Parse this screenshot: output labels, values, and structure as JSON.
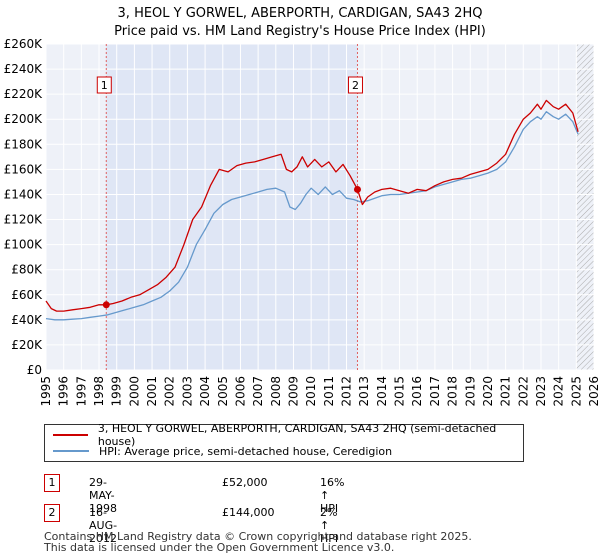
{
  "header": {
    "title_line1": "3, HEOL Y GORWEL, ABERPORTH, CARDIGAN, SA43 2HQ",
    "title_line2": "Price paid vs. HM Land Registry's House Price Index (HPI)"
  },
  "chart_data": {
    "type": "line",
    "title": "3, HEOL Y GORWEL, ABERPORTH, CARDIGAN, SA43 2HQ",
    "subtitle": "Price paid vs. HM Land Registry's House Price Index (HPI)",
    "xlim": [
      1995,
      2026
    ],
    "ylim": [
      0,
      260000
    ],
    "x_ticks": [
      1995,
      1996,
      1997,
      1998,
      1999,
      2000,
      2001,
      2002,
      2003,
      2004,
      2005,
      2006,
      2007,
      2008,
      2009,
      2010,
      2011,
      2012,
      2013,
      2014,
      2015,
      2016,
      2017,
      2018,
      2019,
      2020,
      2021,
      2022,
      2023,
      2024,
      2025,
      2026
    ],
    "y_ticks": [
      0,
      20000,
      40000,
      60000,
      80000,
      100000,
      120000,
      140000,
      160000,
      180000,
      200000,
      220000,
      240000,
      260000
    ],
    "y_tick_labels": [
      "£0",
      "£20K",
      "£40K",
      "£60K",
      "£80K",
      "£100K",
      "£120K",
      "£140K",
      "£160K",
      "£180K",
      "£200K",
      "£220K",
      "£240K",
      "£260K"
    ],
    "grid": true,
    "future_hatch_from": 2025.0,
    "series": [
      {
        "name": "3, HEOL Y GORWEL, ABERPORTH, CARDIGAN, SA43 2HQ (semi-detached house)",
        "color": "#cc0000",
        "x": [
          1995.0,
          1995.3,
          1995.6,
          1996.0,
          1996.5,
          1997.0,
          1997.5,
          1998.0,
          1998.41,
          1998.8,
          1999.3,
          1999.8,
          2000.3,
          2000.8,
          2001.3,
          2001.8,
          2002.3,
          2002.8,
          2003.3,
          2003.8,
          2004.3,
          2004.8,
          2005.3,
          2005.8,
          2006.3,
          2006.8,
          2007.3,
          2007.8,
          2008.3,
          2008.6,
          2008.9,
          2009.2,
          2009.5,
          2009.8,
          2010.2,
          2010.6,
          2011.0,
          2011.4,
          2011.8,
          2012.2,
          2012.62,
          2012.9,
          2013.2,
          2013.6,
          2014.0,
          2014.5,
          2015.0,
          2015.5,
          2016.0,
          2016.5,
          2017.0,
          2017.5,
          2018.0,
          2018.5,
          2019.0,
          2019.5,
          2020.0,
          2020.5,
          2021.0,
          2021.5,
          2022.0,
          2022.4,
          2022.8,
          2023.0,
          2023.3,
          2023.7,
          2024.0,
          2024.4,
          2024.8,
          2025.1
        ],
        "y": [
          55000,
          49000,
          47000,
          47000,
          48000,
          49000,
          50000,
          52000,
          52000,
          53000,
          55000,
          58000,
          60000,
          64000,
          68000,
          74000,
          82000,
          100000,
          120000,
          130000,
          147000,
          160000,
          158000,
          163000,
          165000,
          166000,
          168000,
          170000,
          172000,
          160000,
          158000,
          162000,
          170000,
          162000,
          168000,
          162000,
          166000,
          158000,
          164000,
          155000,
          144000,
          132000,
          138000,
          142000,
          144000,
          145000,
          143000,
          141000,
          144000,
          143000,
          147000,
          150000,
          152000,
          153000,
          156000,
          158000,
          160000,
          165000,
          172000,
          188000,
          200000,
          205000,
          212000,
          208000,
          215000,
          210000,
          208000,
          212000,
          205000,
          190000
        ]
      },
      {
        "name": "HPI: Average price, semi-detached house, Ceredigion",
        "color": "#6699cc",
        "x": [
          1995.0,
          1995.5,
          1996.0,
          1996.5,
          1997.0,
          1997.5,
          1998.0,
          1998.5,
          1999.0,
          1999.5,
          2000.0,
          2000.5,
          2001.0,
          2001.5,
          2002.0,
          2002.5,
          2003.0,
          2003.5,
          2004.0,
          2004.5,
          2005.0,
          2005.5,
          2006.0,
          2006.5,
          2007.0,
          2007.5,
          2008.0,
          2008.5,
          2008.8,
          2009.1,
          2009.4,
          2009.7,
          2010.0,
          2010.4,
          2010.8,
          2011.2,
          2011.6,
          2012.0,
          2012.4,
          2012.8,
          2013.2,
          2013.6,
          2014.0,
          2014.5,
          2015.0,
          2015.5,
          2016.0,
          2016.5,
          2017.0,
          2017.5,
          2018.0,
          2018.5,
          2019.0,
          2019.5,
          2020.0,
          2020.5,
          2021.0,
          2021.5,
          2022.0,
          2022.4,
          2022.8,
          2023.0,
          2023.3,
          2023.7,
          2024.0,
          2024.4,
          2024.8,
          2025.1
        ],
        "y": [
          41000,
          40000,
          40000,
          40500,
          41000,
          42000,
          43000,
          44000,
          46000,
          48000,
          50000,
          52000,
          55000,
          58000,
          63000,
          70000,
          82000,
          100000,
          112000,
          125000,
          132000,
          136000,
          138000,
          140000,
          142000,
          144000,
          145000,
          142000,
          130000,
          128000,
          133000,
          140000,
          145000,
          140000,
          146000,
          140000,
          143000,
          137000,
          136000,
          134000,
          135000,
          137000,
          139000,
          140000,
          140000,
          141000,
          142000,
          143000,
          146000,
          148000,
          150000,
          152000,
          153000,
          155000,
          157000,
          160000,
          166000,
          178000,
          192000,
          198000,
          202000,
          200000,
          206000,
          202000,
          200000,
          204000,
          198000,
          188000
        ]
      }
    ],
    "markers": [
      {
        "label": "1",
        "x": 1998.41,
        "y": 52000
      },
      {
        "label": "2",
        "x": 2012.62,
        "y": 144000
      }
    ]
  },
  "legend": {
    "property_label": "3, HEOL Y GORWEL, ABERPORTH, CARDIGAN, SA43 2HQ (semi-detached house)",
    "hpi_label": "HPI: Average price, semi-detached house, Ceredigion"
  },
  "transactions": [
    {
      "num": "1",
      "date": "29-MAY-1998",
      "price": "£52,000",
      "hpi": "16% ↑ HPI"
    },
    {
      "num": "2",
      "date": "16-AUG-2012",
      "price": "£144,000",
      "hpi": "2% ↑ HPI"
    }
  ],
  "footer": {
    "line1": "Contains HM Land Registry data © Crown copyright and database right 2025.",
    "line2": "This data is licensed under the Open Government Licence v3.0."
  }
}
